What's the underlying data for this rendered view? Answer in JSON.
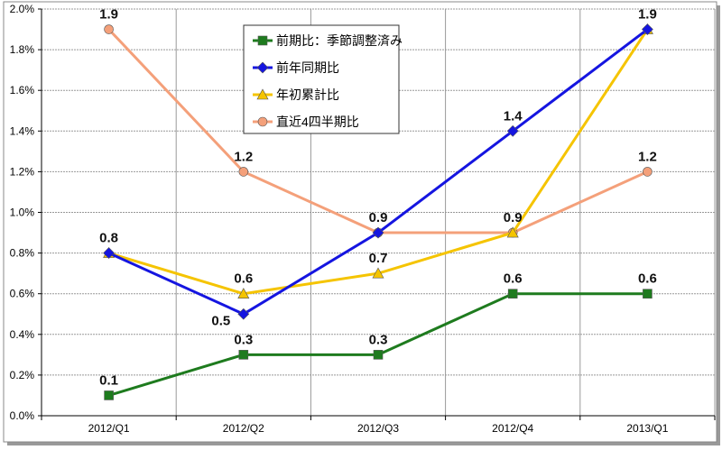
{
  "chart_data": {
    "type": "line",
    "title": "",
    "xlabel": "",
    "ylabel": "",
    "categories": [
      "2012/Q1",
      "2012/Q2",
      "2012/Q3",
      "2012/Q4",
      "2013/Q1"
    ],
    "ylim": [
      0,
      2.0
    ],
    "yticks": [
      "0.0%",
      "0.2%",
      "0.4%",
      "0.6%",
      "0.8%",
      "1.0%",
      "1.2%",
      "1.4%",
      "1.6%",
      "1.8%",
      "2.0%"
    ],
    "grid": true,
    "legend_position": "top-center",
    "series": [
      {
        "name": "前期比：季節調整済み",
        "values": [
          0.1,
          0.3,
          0.3,
          0.6,
          0.6
        ],
        "labels": [
          "0.1",
          "0.3",
          "0.3",
          "0.6",
          "0.6"
        ],
        "color": "#1e7b1e",
        "marker": "square"
      },
      {
        "name": "前年同期比",
        "values": [
          0.8,
          0.5,
          0.9,
          1.4,
          1.9
        ],
        "labels": [
          "0.8",
          "0.5",
          "0.9",
          "1.4",
          "1.9"
        ],
        "color": "#1515e0",
        "marker": "diamond"
      },
      {
        "name": "年初累計比",
        "values": [
          0.8,
          0.6,
          0.7,
          0.9,
          1.9
        ],
        "labels": [
          null,
          "0.6",
          "0.7",
          "0.9",
          null
        ],
        "color": "#f5c400",
        "marker": "triangle"
      },
      {
        "name": "直近4四半期比",
        "values": [
          1.9,
          1.2,
          0.9,
          0.9,
          1.2
        ],
        "labels": [
          "1.9",
          "1.2",
          null,
          null,
          "1.2"
        ],
        "color": "#f4a07a",
        "marker": "circle"
      }
    ]
  }
}
